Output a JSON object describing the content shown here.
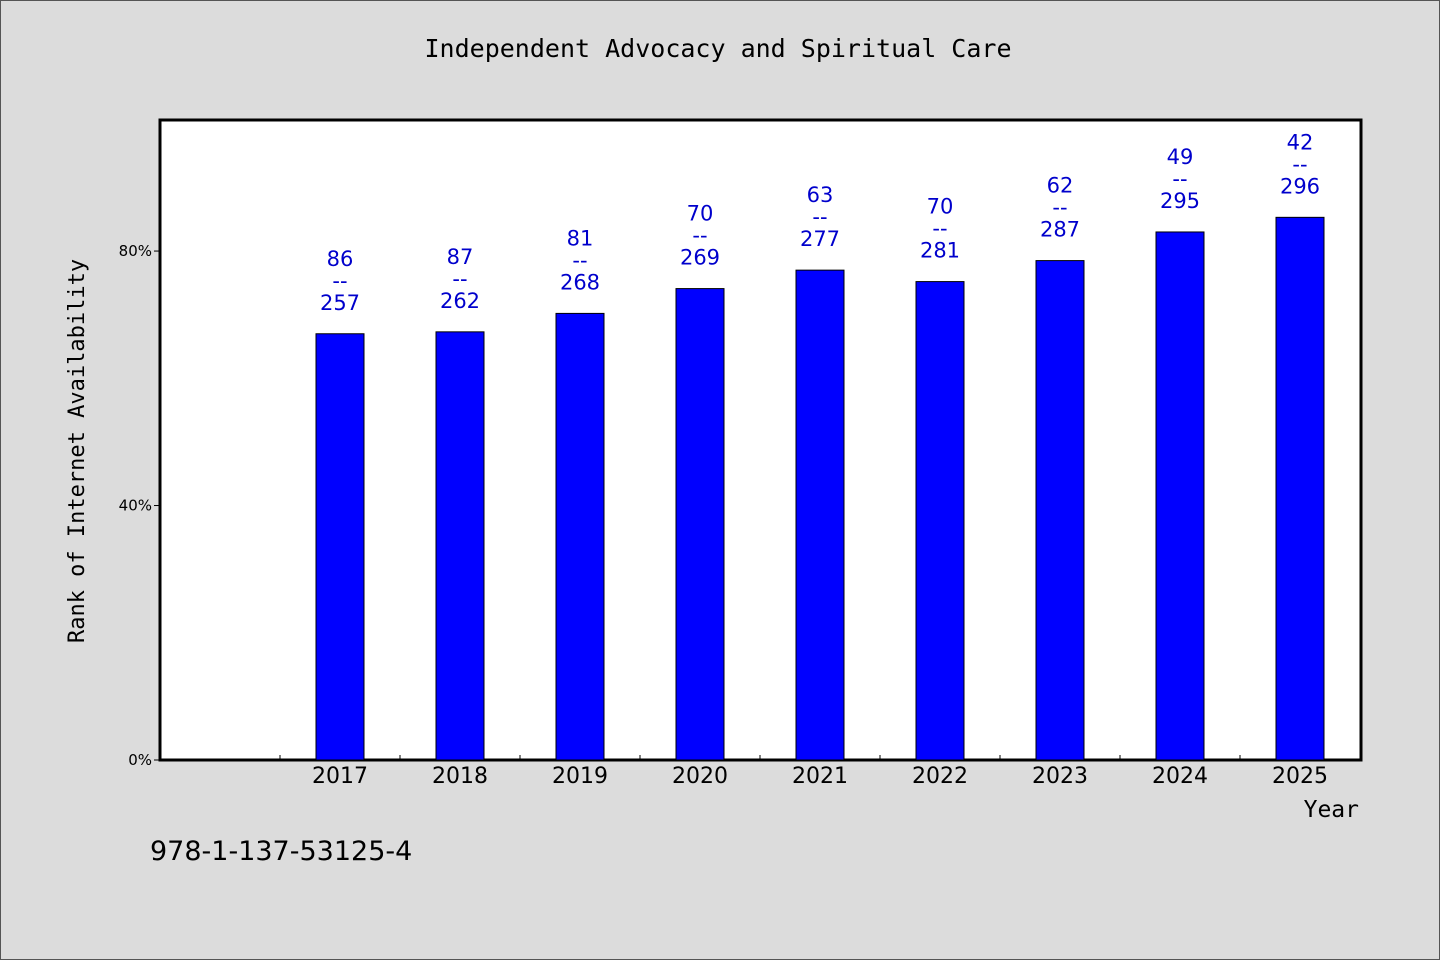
{
  "footer": {
    "code": "978-1-137-53125-4"
  },
  "colors": {
    "bar": "#0000ff",
    "label": "#0000cc",
    "plot_bg": "#ffffff",
    "page_bg": "#dcdcdc"
  },
  "chart_data": {
    "type": "bar",
    "title": "Independent Advocacy and Spiritual Care",
    "xlabel": "Year",
    "ylabel": "Rank of Internet Availability",
    "categories": [
      "2017",
      "2018",
      "2019",
      "2020",
      "2021",
      "2022",
      "2023",
      "2024",
      "2025"
    ],
    "values": [
      67,
      67.3,
      70.2,
      74.1,
      77,
      75.2,
      78.5,
      83,
      85.3
    ],
    "data_labels": [
      [
        "86",
        "--",
        "257"
      ],
      [
        "87",
        "--",
        "262"
      ],
      [
        "81",
        "--",
        "268"
      ],
      [
        "70",
        "--",
        "269"
      ],
      [
        "63",
        "--",
        "277"
      ],
      [
        "70",
        "--",
        "281"
      ],
      [
        "62",
        "--",
        "287"
      ],
      [
        "49",
        "--",
        "295"
      ],
      [
        "42",
        "--",
        "296"
      ]
    ],
    "yticks": [
      0,
      40,
      80
    ],
    "ytick_labels": [
      "0%",
      "40%",
      "80%"
    ],
    "ylim": [
      0,
      100.6
    ],
    "grid": false,
    "legend": false
  }
}
